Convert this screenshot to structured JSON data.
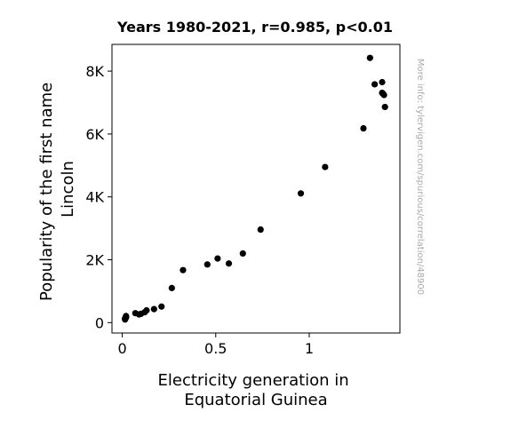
{
  "chart_data": {
    "type": "scatter",
    "title": "Years 1980-2021, r=0.985, p<0.01",
    "xlabel": [
      "Electricity generation in",
      "Equatorial Guinea"
    ],
    "ylabel": [
      "Popularity of the first name",
      "Lincoln"
    ],
    "x_ticks": [
      {
        "value": 0,
        "label": "0"
      },
      {
        "value": 0.5,
        "label": "0.5"
      },
      {
        "value": 1,
        "label": "1"
      }
    ],
    "y_ticks": [
      {
        "value": 0,
        "label": "0"
      },
      {
        "value": 2000,
        "label": "2K"
      },
      {
        "value": 4000,
        "label": "4K"
      },
      {
        "value": 6000,
        "label": "6K"
      },
      {
        "value": 8000,
        "label": "8K"
      }
    ],
    "xlim": [
      -0.055,
      1.485
    ],
    "ylim": [
      -330,
      8850
    ],
    "grid": false,
    "legend": "none",
    "marker_color": "#000000",
    "watermark": "More info: tylervigen.com/spurious/correlation/48900",
    "points": [
      {
        "x": 0.015,
        "y": 100
      },
      {
        "x": 0.015,
        "y": 130
      },
      {
        "x": 0.02,
        "y": 160
      },
      {
        "x": 0.02,
        "y": 190
      },
      {
        "x": 0.02,
        "y": 210
      },
      {
        "x": 0.07,
        "y": 300
      },
      {
        "x": 0.09,
        "y": 260
      },
      {
        "x": 0.1,
        "y": 280
      },
      {
        "x": 0.12,
        "y": 330
      },
      {
        "x": 0.13,
        "y": 390
      },
      {
        "x": 0.17,
        "y": 430
      },
      {
        "x": 0.21,
        "y": 510
      },
      {
        "x": 0.265,
        "y": 1100
      },
      {
        "x": 0.325,
        "y": 1670
      },
      {
        "x": 0.455,
        "y": 1850
      },
      {
        "x": 0.51,
        "y": 2040
      },
      {
        "x": 0.57,
        "y": 1880
      },
      {
        "x": 0.645,
        "y": 2200
      },
      {
        "x": 0.74,
        "y": 2960
      },
      {
        "x": 0.955,
        "y": 4110
      },
      {
        "x": 1.085,
        "y": 4950
      },
      {
        "x": 1.29,
        "y": 6180
      },
      {
        "x": 1.325,
        "y": 8420
      },
      {
        "x": 1.35,
        "y": 7580
      },
      {
        "x": 1.39,
        "y": 7650
      },
      {
        "x": 1.39,
        "y": 7310
      },
      {
        "x": 1.395,
        "y": 7280
      },
      {
        "x": 1.4,
        "y": 7240
      },
      {
        "x": 1.405,
        "y": 6860
      }
    ]
  }
}
